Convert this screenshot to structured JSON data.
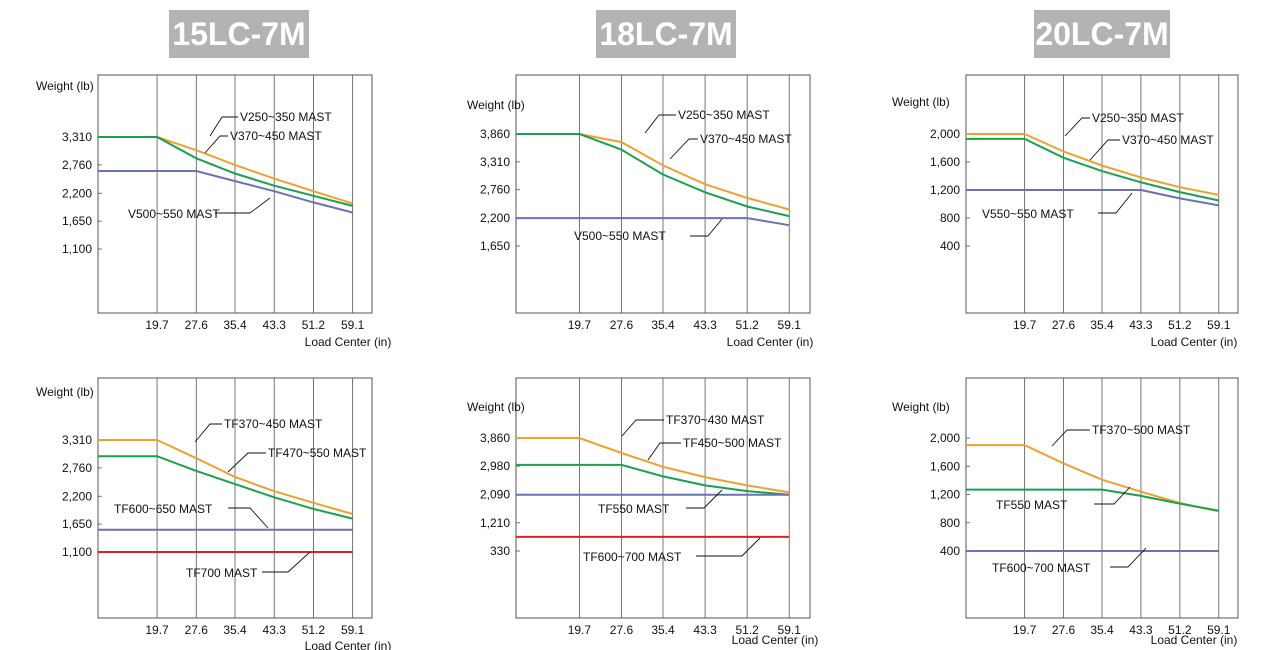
{
  "models": [
    "15LC-7M",
    "18LC-7M",
    "20LC-7M"
  ],
  "colors": {
    "orange": "#f0a030",
    "green": "#1aa050",
    "blue": "#6a72b0",
    "red": "#e02020",
    "grid": "#555555"
  },
  "chart_data": [
    {
      "type": "line",
      "model": "15LC-7M",
      "ylabel": "Weight (lb)",
      "xlabel": "Load Center (in)",
      "x_ticks": [
        "19.7",
        "27.6",
        "35.4",
        "43.3",
        "51.2",
        "59.1"
      ],
      "y_ticks": [
        "1,100",
        "1,650",
        "2,200",
        "2,760",
        "3,310"
      ],
      "series": [
        {
          "name": "V250~350 MAST",
          "color": "orange",
          "x": [
            7,
            19.7,
            27.6,
            35.4,
            43.3,
            51.2,
            59.1
          ],
          "y": [
            3310,
            3310,
            3050,
            2760,
            2490,
            2240,
            2000
          ]
        },
        {
          "name": "V370~450 MAST",
          "color": "green",
          "x": [
            7,
            19.7,
            27.6,
            35.4,
            43.3,
            51.2,
            59.1
          ],
          "y": [
            3310,
            3310,
            2890,
            2590,
            2350,
            2150,
            1950
          ]
        },
        {
          "name": "V500~550 MAST",
          "color": "blue",
          "x": [
            7,
            19.7,
            27.6,
            35.4,
            43.3,
            51.2,
            59.1
          ],
          "y": [
            2640,
            2640,
            2640,
            2440,
            2240,
            2020,
            1820
          ]
        }
      ]
    },
    {
      "type": "line",
      "model": "18LC-7M",
      "ylabel": "Weight (lb)",
      "xlabel": "Load Center (in)",
      "x_ticks": [
        "19.7",
        "27.6",
        "35.4",
        "43.3",
        "51.2",
        "59.1"
      ],
      "y_ticks": [
        "1,650",
        "2,200",
        "2,760",
        "3,310",
        "3,860"
      ],
      "series": [
        {
          "name": "V250~350 MAST",
          "color": "orange",
          "x": [
            7,
            19.7,
            27.6,
            35.4,
            43.3,
            51.2,
            59.1
          ],
          "y": [
            3860,
            3860,
            3700,
            3240,
            2870,
            2600,
            2370
          ]
        },
        {
          "name": "V370~450 MAST",
          "color": "green",
          "x": [
            7,
            19.7,
            27.6,
            35.4,
            43.3,
            51.2,
            59.1
          ],
          "y": [
            3860,
            3860,
            3550,
            3060,
            2710,
            2430,
            2240
          ]
        },
        {
          "name": "V500~550 MAST",
          "color": "blue",
          "x": [
            7,
            19.7,
            27.6,
            35.4,
            43.3,
            51.2,
            59.1
          ],
          "y": [
            2200,
            2200,
            2200,
            2200,
            2200,
            2200,
            2060
          ]
        }
      ]
    },
    {
      "type": "line",
      "model": "20LC-7M",
      "ylabel": "Weight (lb)",
      "xlabel": "Load Center (in)",
      "x_ticks": [
        "19.7",
        "27.6",
        "35.4",
        "43.3",
        "51.2",
        "59.1"
      ],
      "y_ticks": [
        "400",
        "800",
        "1,200",
        "1,600",
        "2,000"
      ],
      "series": [
        {
          "name": "V250~350 MAST",
          "color": "orange",
          "x": [
            7,
            19.7,
            27.6,
            35.4,
            43.3,
            51.2,
            59.1
          ],
          "y": [
            2000,
            2000,
            1750,
            1550,
            1380,
            1240,
            1130
          ]
        },
        {
          "name": "V370~450 MAST",
          "color": "green",
          "x": [
            7,
            19.7,
            27.6,
            35.4,
            43.3,
            51.2,
            59.1
          ],
          "y": [
            1930,
            1930,
            1660,
            1470,
            1310,
            1170,
            1050
          ]
        },
        {
          "name": "V550~550 MAST",
          "color": "blue",
          "x": [
            7,
            19.7,
            27.6,
            35.4,
            43.3,
            51.2,
            59.1
          ],
          "y": [
            1200,
            1200,
            1200,
            1200,
            1200,
            1080,
            980
          ]
        }
      ]
    },
    {
      "type": "line",
      "model": "15LC-7M",
      "ylabel": "Weight (lb)",
      "xlabel": "Load Center (in)",
      "x_ticks": [
        "19.7",
        "27.6",
        "35.4",
        "43.3",
        "51.2",
        "59.1"
      ],
      "y_ticks": [
        "1,100",
        "1,650",
        "2,200",
        "2,760",
        "3,310"
      ],
      "series": [
        {
          "name": "TF370~450 MAST",
          "color": "orange",
          "x": [
            7,
            19.7,
            27.6,
            35.4,
            43.3,
            51.2,
            59.1
          ],
          "y": [
            3310,
            3310,
            2950,
            2580,
            2300,
            2070,
            1850
          ]
        },
        {
          "name": "TF470~550 MAST",
          "color": "green",
          "x": [
            7,
            19.7,
            27.6,
            35.4,
            43.3,
            51.2,
            59.1
          ],
          "y": [
            2990,
            2990,
            2700,
            2440,
            2180,
            1950,
            1760
          ]
        },
        {
          "name": "TF600~650 MAST",
          "color": "blue",
          "x": [
            7,
            19.7,
            27.6,
            35.4,
            43.3,
            51.2,
            59.1
          ],
          "y": [
            1540,
            1540,
            1540,
            1540,
            1540,
            1540,
            1540
          ]
        },
        {
          "name": "TF700 MAST",
          "color": "red",
          "x": [
            7,
            19.7,
            27.6,
            35.4,
            43.3,
            51.2,
            59.1
          ],
          "y": [
            1100,
            1100,
            1100,
            1100,
            1100,
            1100,
            1100
          ]
        }
      ]
    },
    {
      "type": "line",
      "model": "18LC-7M",
      "ylabel": "Weight (lb)",
      "xlabel": "Load Center (in)",
      "x_ticks": [
        "19.7",
        "27.6",
        "35.4",
        "43.3",
        "51.2",
        "59.1"
      ],
      "y_ticks": [
        "330",
        "1,210",
        "2,090",
        "2,980",
        "3,860"
      ],
      "series": [
        {
          "name": "TF370~430 MAST",
          "color": "orange",
          "x": [
            7,
            19.7,
            27.6,
            35.4,
            43.3,
            51.2,
            59.1
          ],
          "y": [
            3860,
            3860,
            3390,
            2960,
            2640,
            2380,
            2160
          ]
        },
        {
          "name": "TF450~500 MAST",
          "color": "green",
          "x": [
            7,
            19.7,
            27.6,
            35.4,
            43.3,
            51.2,
            59.1
          ],
          "y": [
            3020,
            3020,
            3020,
            2660,
            2380,
            2200,
            2090
          ]
        },
        {
          "name": "TF550 MAST",
          "color": "blue",
          "x": [
            7,
            19.7,
            27.6,
            35.4,
            43.3,
            51.2,
            59.1
          ],
          "y": [
            2090,
            2090,
            2090,
            2090,
            2090,
            2090,
            2090
          ]
        },
        {
          "name": "TF600~700 MAST",
          "color": "red",
          "x": [
            7,
            19.7,
            27.6,
            35.4,
            43.3,
            51.2,
            59.1
          ],
          "y": [
            770,
            770,
            770,
            770,
            770,
            770,
            770
          ]
        }
      ]
    },
    {
      "type": "line",
      "model": "20LC-7M",
      "ylabel": "Weight (lb)",
      "xlabel": "Load Center (in)",
      "x_ticks": [
        "19.7",
        "27.6",
        "35.4",
        "43.3",
        "51.2",
        "59.1"
      ],
      "y_ticks": [
        "400",
        "800",
        "1,200",
        "1,600",
        "2,000"
      ],
      "series": [
        {
          "name": "TF370~500 MAST",
          "color": "orange",
          "x": [
            7,
            19.7,
            27.6,
            35.4,
            43.3,
            51.2,
            59.1
          ],
          "y": [
            1900,
            1900,
            1640,
            1410,
            1240,
            1080,
            960
          ]
        },
        {
          "name": "TF550 MAST",
          "color": "green",
          "x": [
            7,
            19.7,
            27.6,
            35.4,
            43.3,
            51.2,
            59.1
          ],
          "y": [
            1270,
            1270,
            1270,
            1270,
            1180,
            1070,
            970
          ]
        },
        {
          "name": "TF600~700 MAST",
          "color": "blue",
          "x": [
            7,
            19.7,
            27.6,
            35.4,
            43.3,
            51.2,
            59.1
          ],
          "y": [
            400,
            400,
            400,
            400,
            400,
            400,
            400
          ]
        }
      ]
    }
  ]
}
